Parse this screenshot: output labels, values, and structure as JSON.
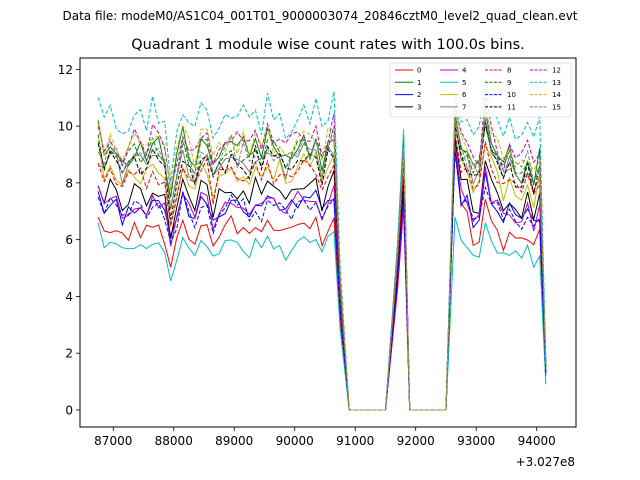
{
  "chart_data": {
    "type": "line",
    "suptitle": "Data file: modeM0/AS1C04_001T01_9000003074_20846cztM0_level2_quad_clean.evt",
    "title": "Quadrant 1 module wise count rates with 100.0s bins.",
    "xlabel": "",
    "ylabel": "",
    "x_offset_label": "+3.027e8",
    "xlim": [
      86450,
      94650
    ],
    "ylim": [
      -0.6,
      12.4
    ],
    "x_ticks": [
      87000,
      88000,
      89000,
      90000,
      91000,
      92000,
      93000,
      94000
    ],
    "x_tick_labels": [
      "87000",
      "88000",
      "89000",
      "90000",
      "91000",
      "92000",
      "93000",
      "94000"
    ],
    "y_ticks": [
      0,
      2,
      4,
      6,
      8,
      10,
      12
    ],
    "y_tick_labels": [
      "0",
      "2",
      "4",
      "6",
      "8",
      "10",
      "12"
    ],
    "grid": false,
    "legend_position": "top-right",
    "segments": [
      {
        "start": 86750,
        "end": 90750
      },
      {
        "start": 90900,
        "end": 91500
      },
      {
        "start": 91700,
        "end": 91800
      },
      {
        "start": 91900,
        "end": 92500
      },
      {
        "start": 92650,
        "end": 94150
      }
    ],
    "shape_template": [
      0.0,
      -0.02,
      0.03,
      0.01,
      -0.04,
      -0.02,
      0.02,
      0.0,
      -0.01,
      0.04,
      0.01,
      -0.03,
      -0.18,
      -0.05,
      0.06,
      -0.01,
      -0.06,
      0.02,
      0.04,
      -0.08,
      0.0,
      0.01,
      0.05,
      0.0,
      0.02,
      -0.02,
      0.04,
      -0.01,
      0.06,
      0.01,
      0.02,
      -0.03,
      0.0,
      0.03,
      0.05,
      0.02,
      0.05,
      -0.04,
      0.03,
      0.07,
      0.04,
      0.0,
      0.0,
      0.0,
      0.0,
      0.0,
      0.0,
      0.0,
      0.0,
      0.0,
      -0.45,
      0.0,
      -0.4,
      0.0,
      0.0,
      0.0,
      0.0,
      0.0,
      0.0,
      0.0,
      0.0,
      0.0,
      0.2,
      0.1,
      0.05,
      -0.02,
      0.04,
      0.0,
      -0.03,
      0.03,
      -0.05,
      0.02,
      0.0,
      0.04,
      0.01,
      -0.02,
      -0.01,
      0.02,
      -0.03,
      0.0,
      0.03,
      -0.01,
      0.0,
      -0.02,
      -0.3
    ],
    "series": [
      {
        "name": "0",
        "color": "#ff0000",
        "dash": "solid",
        "level": 6.3,
        "start": 6.8,
        "peak": 7.4,
        "peak2": 9.5,
        "end": 1.3
      },
      {
        "name": "1",
        "color": "#008000",
        "dash": "solid",
        "level": 9.1,
        "start": 10.2,
        "peak": 9.7,
        "peak2": 10.4,
        "end": 1.6
      },
      {
        "name": "2",
        "color": "#0000ff",
        "dash": "solid",
        "level": 7.1,
        "start": 7.7,
        "peak": 7.9,
        "peak2": 9.2,
        "end": 1.2
      },
      {
        "name": "3",
        "color": "#000000",
        "dash": "solid",
        "level": 7.6,
        "start": 7.9,
        "peak": 8.2,
        "peak2": 9.6,
        "end": 1.6
      },
      {
        "name": "4",
        "color": "#bf00bf",
        "dash": "solid",
        "level": 7.2,
        "start": 7.9,
        "peak": 7.1,
        "peak2": 9.3,
        "end": 1.4
      },
      {
        "name": "5",
        "color": "#00bfbf",
        "dash": "solid",
        "level": 5.7,
        "start": 6.6,
        "peak": 9.6,
        "peak2": 6.8,
        "end": 0.9
      },
      {
        "name": "6",
        "color": "#bfbf00",
        "dash": "solid",
        "level": 8.3,
        "start": 9.5,
        "peak": 8.9,
        "peak2": 10.1,
        "end": 1.5
      },
      {
        "name": "7",
        "color": "#808080",
        "dash": "solid",
        "level": 8.7,
        "start": 8.6,
        "peak": 9.3,
        "peak2": 10.2,
        "end": 1.6
      },
      {
        "name": "8",
        "color": "#ff0000",
        "dash": "dashed",
        "level": 8.2,
        "start": 8.7,
        "peak": 8.5,
        "peak2": 9.8,
        "end": 1.5
      },
      {
        "name": "9",
        "color": "#008000",
        "dash": "dashed",
        "level": 9.0,
        "start": 9.7,
        "peak": 9.4,
        "peak2": 10.5,
        "end": 1.7
      },
      {
        "name": "10",
        "color": "#0000ff",
        "dash": "dashed",
        "level": 7.0,
        "start": 7.5,
        "peak": 7.6,
        "peak2": 9.1,
        "end": 1.3
      },
      {
        "name": "11",
        "color": "#000000",
        "dash": "dashed",
        "level": 8.6,
        "start": 9.4,
        "peak": 9.0,
        "peak2": 10.0,
        "end": 1.6
      },
      {
        "name": "12",
        "color": "#bf00bf",
        "dash": "dashed",
        "level": 9.4,
        "start": 10.0,
        "peak": 9.5,
        "peak2": 10.7,
        "end": 1.7
      },
      {
        "name": "13",
        "color": "#00bfbf",
        "dash": "dashed",
        "level": 10.2,
        "start": 11.0,
        "peak": 9.9,
        "peak2": 11.0,
        "end": 1.8
      },
      {
        "name": "14",
        "color": "#bfbf00",
        "dash": "dashed",
        "level": 9.3,
        "start": 10.1,
        "peak": 9.2,
        "peak2": 10.6,
        "end": 1.6
      },
      {
        "name": "15",
        "color": "#808080",
        "dash": "dashed",
        "level": 8.9,
        "start": 9.1,
        "peak": 9.1,
        "peak2": 10.3,
        "end": 1.6
      }
    ]
  }
}
